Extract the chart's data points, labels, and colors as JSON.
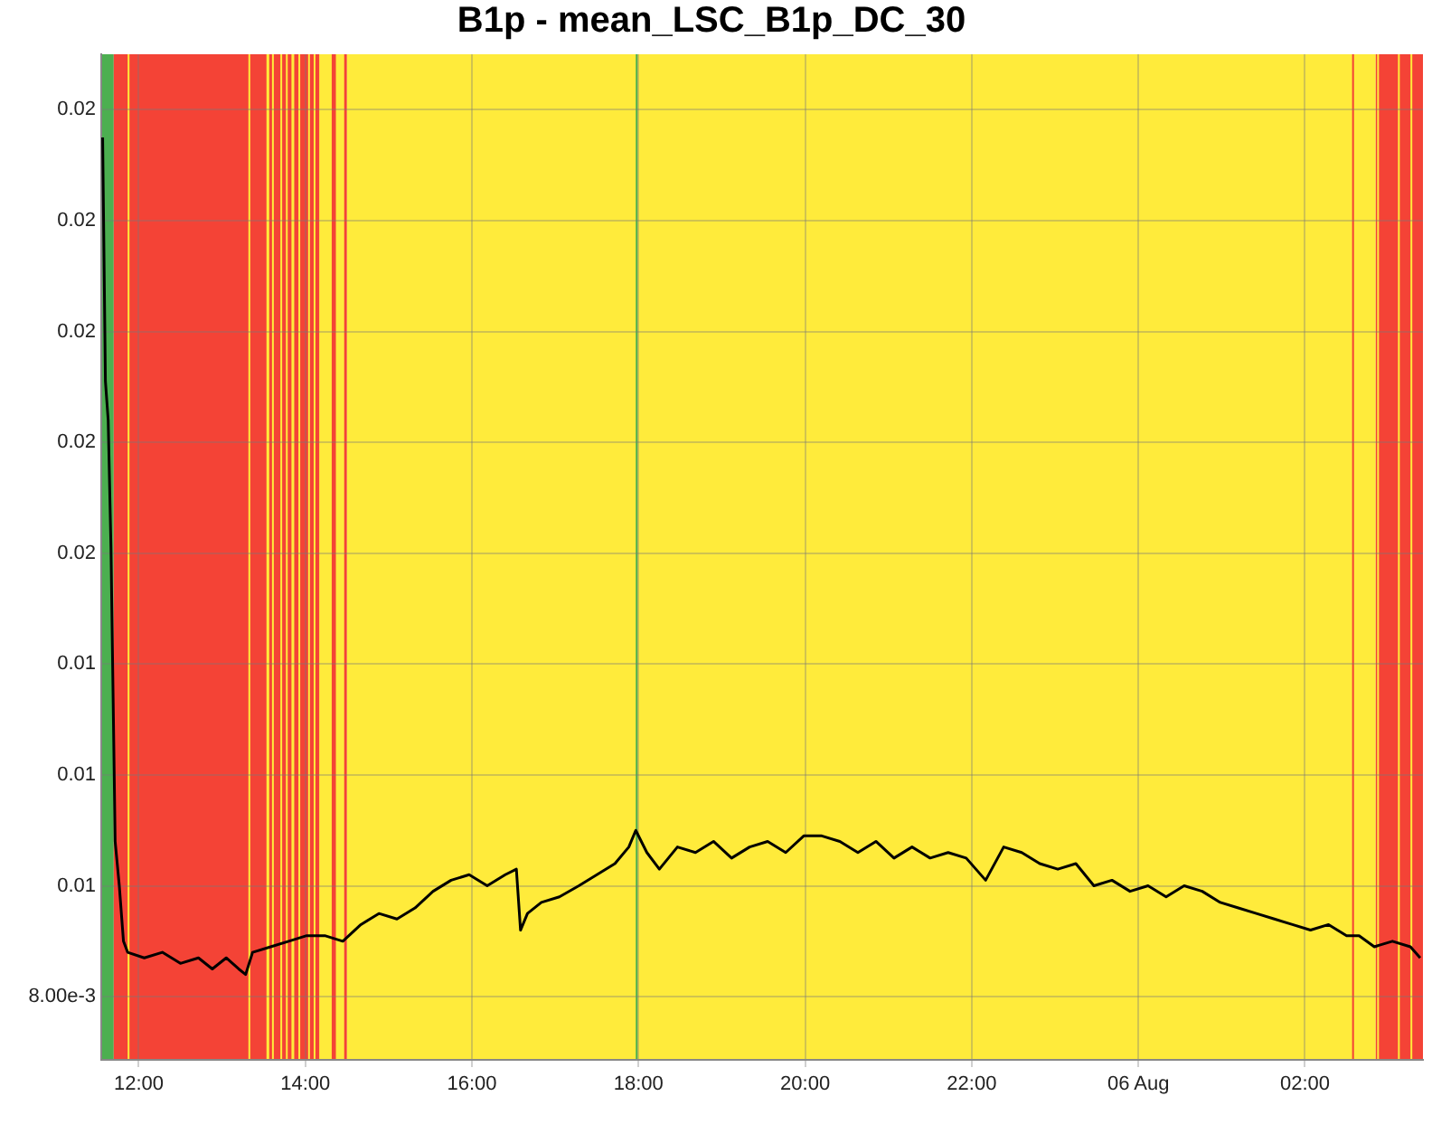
{
  "chart_data": {
    "type": "line",
    "title": "B1p - mean_LSC_B1p_DC_30",
    "xlim": [
      "--08-05T11:33",
      "--08-06T03:25"
    ],
    "ylim": [
      0.00686,
      0.025
    ],
    "xticks": [
      {
        "value": "--08-05T12:00",
        "label": "12:00"
      },
      {
        "value": "--08-05T14:00",
        "label": "14:00"
      },
      {
        "value": "--08-05T16:00",
        "label": "16:00"
      },
      {
        "value": "--08-05T18:00",
        "label": "18:00"
      },
      {
        "value": "--08-05T20:00",
        "label": "20:00"
      },
      {
        "value": "--08-05T22:00",
        "label": "22:00"
      },
      {
        "value": "--08-06T00:00",
        "label": "06 Aug"
      },
      {
        "value": "--08-06T02:00",
        "label": "02:00"
      }
    ],
    "yticks": [
      {
        "value": 0.008,
        "label": "8.00e-3"
      },
      {
        "value": 0.01,
        "label": "0.01"
      },
      {
        "value": 0.012,
        "label": "0.01"
      },
      {
        "value": 0.014,
        "label": "0.01"
      },
      {
        "value": 0.016,
        "label": "0.02"
      },
      {
        "value": 0.018,
        "label": "0.02"
      },
      {
        "value": 0.02,
        "label": "0.02"
      },
      {
        "value": 0.022,
        "label": "0.02"
      },
      {
        "value": 0.024,
        "label": "0.02"
      }
    ],
    "grid": true,
    "legend": false,
    "bands": [
      {
        "axis": "x",
        "from": "--08-05T11:33",
        "to": "--08-05T11:42",
        "color": "#4caf50"
      },
      {
        "axis": "x",
        "from": "--08-05T11:42",
        "to": "--08-05T14:30",
        "color": "#f44336"
      },
      {
        "axis": "x",
        "from": "--08-05T11:52",
        "to": "--08-05T11:53",
        "color": "#ffeb3b"
      },
      {
        "axis": "x",
        "from": "--08-05T13:19",
        "to": "--08-05T13:20",
        "color": "#ffeb3b"
      },
      {
        "axis": "x",
        "from": "--08-05T13:32",
        "to": "--08-05T13:34",
        "color": "#ffeb3b"
      },
      {
        "axis": "x",
        "from": "--08-05T13:36",
        "to": "--08-05T13:37",
        "color": "#ffeb3b"
      },
      {
        "axis": "x",
        "from": "--08-05T13:42",
        "to": "--08-05T13:43",
        "color": "#ffeb3b"
      },
      {
        "axis": "x",
        "from": "--08-05T13:46",
        "to": "--08-05T13:47",
        "color": "#ffeb3b"
      },
      {
        "axis": "x",
        "from": "--08-05T13:50",
        "to": "--08-05T13:52",
        "color": "#ffeb3b"
      },
      {
        "axis": "x",
        "from": "--08-05T13:55",
        "to": "--08-05T13:56",
        "color": "#ffeb3b"
      },
      {
        "axis": "x",
        "from": "--08-05T14:02",
        "to": "--08-05T14:03",
        "color": "#ffeb3b"
      },
      {
        "axis": "x",
        "from": "--08-05T14:06",
        "to": "--08-05T14:07",
        "color": "#ffeb3b"
      },
      {
        "axis": "x",
        "from": "--08-05T14:10",
        "to": "--08-05T14:19",
        "color": "#ffeb3b"
      },
      {
        "axis": "x",
        "from": "--08-05T14:22",
        "to": "--08-05T14:28",
        "color": "#ffeb3b"
      },
      {
        "axis": "x",
        "from": "--08-05T14:30",
        "to": "--08-06T02:51",
        "color": "#ffeb3b"
      },
      {
        "axis": "x",
        "from": "--08-05T17:58",
        "to": "--08-05T17:59",
        "color": "#4caf50"
      },
      {
        "axis": "x",
        "from": "--08-06T02:34",
        "to": "--08-06T02:35",
        "color": "#f44336"
      },
      {
        "axis": "x",
        "from": "--08-06T02:51",
        "to": "--08-06T03:25",
        "color": "#f44336"
      },
      {
        "axis": "x",
        "from": "--08-06T02:52",
        "to": "--08-06T02:53",
        "color": "#ffeb3b"
      },
      {
        "axis": "x",
        "from": "--08-06T03:07",
        "to": "--08-06T03:08",
        "color": "#ffeb3b"
      },
      {
        "axis": "x",
        "from": "--08-06T03:16",
        "to": "--08-06T03:17",
        "color": "#ffeb3b"
      }
    ],
    "series": [
      {
        "color": "#000000",
        "x": [
          "--08-05T11:34",
          "--08-05T11:36",
          "--08-05T11:38",
          "--08-05T11:40",
          "--08-05T11:42",
          "--08-05T11:43",
          "--08-05T11:46",
          "--08-05T11:49",
          "--08-05T11:52",
          "--08-05T12:04",
          "--08-05T12:17",
          "--08-05T12:30",
          "--08-05T12:43",
          "--08-05T12:53",
          "--08-05T13:03",
          "--08-05T13:12",
          "--08-05T13:17",
          "--08-05T13:22",
          "--08-05T13:35",
          "--08-05T13:48",
          "--08-05T14:01",
          "--08-05T14:14",
          "--08-05T14:27",
          "--08-05T14:40",
          "--08-05T14:53",
          "--08-05T15:06",
          "--08-05T15:19",
          "--08-05T15:32",
          "--08-05T15:45",
          "--08-05T15:58",
          "--08-05T16:11",
          "--08-05T16:24",
          "--08-05T16:32",
          "--08-05T16:35",
          "--08-05T16:40",
          "--08-05T16:50",
          "--08-05T17:03",
          "--08-05T17:17",
          "--08-05T17:30",
          "--08-05T17:43",
          "--08-05T17:53",
          "--08-05T17:58",
          "--08-05T18:06",
          "--08-05T18:15",
          "--08-05T18:28",
          "--08-05T18:41",
          "--08-05T18:54",
          "--08-05T19:07",
          "--08-05T19:20",
          "--08-05T19:33",
          "--08-05T19:46",
          "--08-05T19:59",
          "--08-05T20:12",
          "--08-05T20:25",
          "--08-05T20:38",
          "--08-05T20:51",
          "--08-05T21:04",
          "--08-05T21:17",
          "--08-05T21:30",
          "--08-05T21:43",
          "--08-05T21:56",
          "--08-05T22:10",
          "--08-05T22:23",
          "--08-05T22:36",
          "--08-05T22:49",
          "--08-05T23:02",
          "--08-05T23:15",
          "--08-05T23:28",
          "--08-05T23:41",
          "--08-05T23:54",
          "--08-06T00:07",
          "--08-06T00:20",
          "--08-06T00:33",
          "--08-06T00:46",
          "--08-06T00:59",
          "--08-06T01:12",
          "--08-06T01:25",
          "--08-06T01:38",
          "--08-06T01:51",
          "--08-06T02:04",
          "--08-06T02:17",
          "--08-06T02:30",
          "--08-06T02:39",
          "--08-06T02:50",
          "--08-06T03:03",
          "--08-06T03:16",
          "--08-06T03:23"
        ],
        "values": [
          0.0235,
          0.0191,
          0.0184,
          0.0161,
          0.0126,
          0.0108,
          0.01,
          0.009,
          0.0088,
          0.0087,
          0.0088,
          0.0086,
          0.0087,
          0.0085,
          0.0087,
          0.0085,
          0.0084,
          0.0088,
          0.0089,
          0.009,
          0.0091,
          0.0091,
          0.009,
          0.0093,
          0.0095,
          0.0094,
          0.0096,
          0.0099,
          0.0101,
          0.0102,
          0.01,
          0.0102,
          0.0103,
          0.0092,
          0.0095,
          0.0097,
          0.0098,
          0.01,
          0.0102,
          0.0104,
          0.0107,
          0.011,
          0.0106,
          0.0103,
          0.0107,
          0.0106,
          0.0108,
          0.0105,
          0.0107,
          0.0108,
          0.0106,
          0.0109,
          0.0109,
          0.0108,
          0.0106,
          0.0108,
          0.0105,
          0.0107,
          0.0105,
          0.0106,
          0.0105,
          0.0101,
          0.0107,
          0.0106,
          0.0104,
          0.0103,
          0.0104,
          0.01,
          0.0101,
          0.0099,
          0.01,
          0.0098,
          0.01,
          0.0099,
          0.0097,
          0.0096,
          0.0095,
          0.0094,
          0.0093,
          0.0092,
          0.0093,
          0.0091,
          0.0091,
          0.0089,
          0.009,
          0.0089,
          0.0087
        ]
      }
    ]
  }
}
